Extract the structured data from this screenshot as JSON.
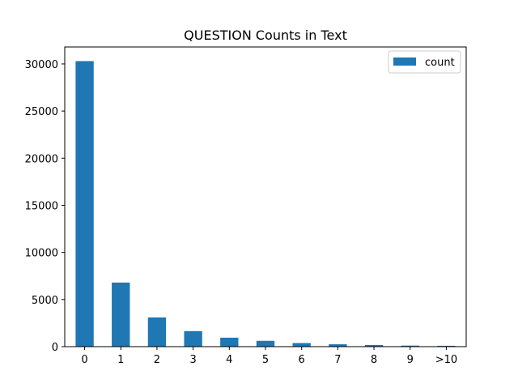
{
  "chart_data": {
    "type": "bar",
    "title": "QUESTION Counts in Text",
    "xlabel": "",
    "ylabel": "",
    "categories": [
      "0",
      "1",
      "2",
      "3",
      "4",
      "5",
      "6",
      "7",
      "8",
      "9",
      ">10"
    ],
    "series": [
      {
        "name": "count",
        "values": [
          30300,
          6800,
          3100,
          1650,
          950,
          620,
          380,
          250,
          170,
          110,
          90
        ],
        "color": "#1f77b4"
      }
    ],
    "ylim": [
      0,
      31800
    ],
    "yticks": [
      0,
      5000,
      10000,
      15000,
      20000,
      25000,
      30000
    ],
    "grid": false,
    "legend_position": "top-right"
  }
}
